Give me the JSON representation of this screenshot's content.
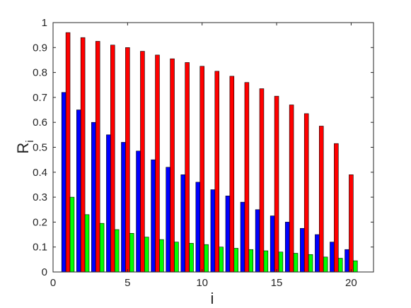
{
  "chart_data": {
    "type": "bar",
    "xlabel": "i",
    "ylabel": {
      "main": "R",
      "sub": "i"
    },
    "xlim": [
      0,
      21.5
    ],
    "ylim": [
      0,
      1
    ],
    "grid": false,
    "legend": "none",
    "x": [
      1,
      2,
      3,
      4,
      5,
      6,
      7,
      8,
      9,
      10,
      11,
      12,
      13,
      14,
      15,
      16,
      17,
      18,
      19,
      20
    ],
    "xticks": [
      0,
      5,
      10,
      15,
      20
    ],
    "xtick_labels": [
      "0",
      "5",
      "10",
      "15",
      "20"
    ],
    "yticks": [
      0,
      0.1,
      0.2,
      0.3,
      0.4,
      0.5,
      0.6,
      0.7,
      0.8,
      0.9,
      1
    ],
    "ytick_labels": [
      "0",
      "0.1",
      "0.2",
      "0.3",
      "0.4",
      "0.5",
      "0.6",
      "0.7",
      "0.8",
      "0.9",
      "1"
    ],
    "series": [
      {
        "color": "#0000ff",
        "values": [
          0.72,
          0.65,
          0.6,
          0.55,
          0.52,
          0.485,
          0.45,
          0.42,
          0.39,
          0.36,
          0.33,
          0.305,
          0.28,
          0.25,
          0.225,
          0.2,
          0.175,
          0.15,
          0.12,
          0.09
        ]
      },
      {
        "color": "#ff0000",
        "values": [
          0.96,
          0.94,
          0.925,
          0.91,
          0.9,
          0.885,
          0.87,
          0.855,
          0.84,
          0.825,
          0.805,
          0.785,
          0.76,
          0.735,
          0.705,
          0.67,
          0.635,
          0.585,
          0.515,
          0.39
        ]
      },
      {
        "color": "#00ff00",
        "values": [
          0.3,
          0.23,
          0.195,
          0.17,
          0.155,
          0.14,
          0.13,
          0.12,
          0.115,
          0.11,
          0.1,
          0.095,
          0.09,
          0.085,
          0.08,
          0.075,
          0.07,
          0.06,
          0.055,
          0.045
        ]
      }
    ]
  }
}
